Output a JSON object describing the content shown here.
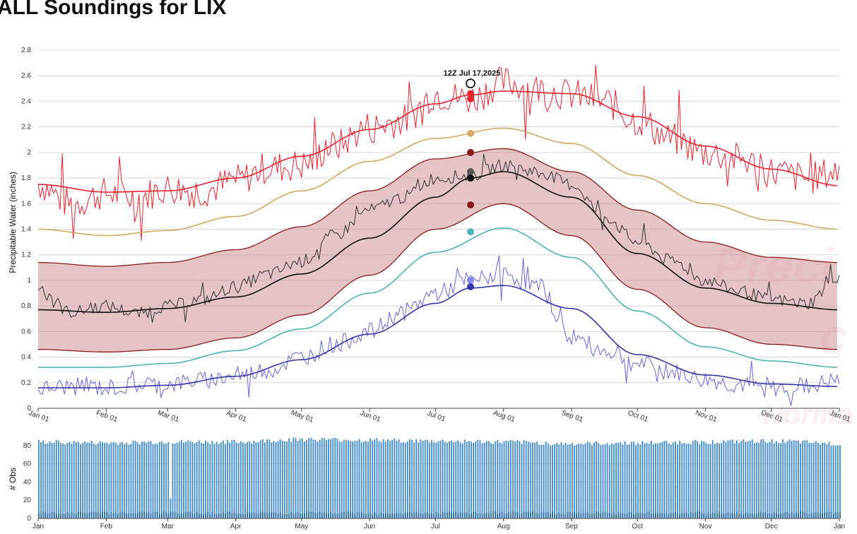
{
  "title": "ALL Soundings for LIX",
  "annotation": "12Z Jul 17,2025",
  "chart_data": [
    {
      "type": "line",
      "ylabel": "Precipitable Water (inches)",
      "xlabel": "",
      "ylim": [
        0,
        2.8
      ],
      "yticks": [
        0,
        0.2,
        0.4,
        0.6,
        0.8,
        1,
        1.2,
        1.4,
        1.6,
        1.8,
        2,
        2.2,
        2.4,
        2.6,
        2.8
      ],
      "ytick_labels": [
        "0",
        "0.2",
        "0.4",
        "0.6",
        "0.8",
        "1",
        "1.2",
        "1.4",
        "1.6",
        "1.8",
        "2",
        "2.2",
        "2.4",
        "2.6",
        "2.8"
      ],
      "x_tick_labels": [
        "Jan 01",
        "Feb 01",
        "Mar 01",
        "Apr 01",
        "May 01",
        "Jun 01",
        "Jul 01",
        "Aug 01",
        "Sep 01",
        "Oct 01",
        "Nov 01",
        "Dec 01",
        "Jan 01"
      ],
      "x_tick_days": [
        0,
        31,
        59,
        90,
        120,
        151,
        181,
        212,
        243,
        273,
        304,
        334,
        365
      ],
      "grid": "horizontal",
      "band_75_25": {
        "days": [
          0,
          31,
          59,
          90,
          120,
          151,
          181,
          212,
          243,
          273,
          304,
          334,
          365
        ],
        "upper": [
          1.14,
          1.11,
          1.14,
          1.24,
          1.42,
          1.7,
          1.95,
          2.03,
          1.85,
          1.55,
          1.3,
          1.18,
          1.14
        ],
        "lower": [
          0.46,
          0.44,
          0.46,
          0.55,
          0.73,
          1.04,
          1.4,
          1.6,
          1.35,
          0.93,
          0.63,
          0.5,
          0.46
        ]
      },
      "series": [
        {
          "color": "#e8222e",
          "kind": "max-observed",
          "days": [
            0,
            15,
            31,
            45,
            59,
            75,
            90,
            105,
            120,
            135,
            151,
            166,
            181,
            197,
            212,
            228,
            243,
            258,
            273,
            289,
            304,
            319,
            334,
            350,
            365
          ],
          "values": [
            1.75,
            1.6,
            1.68,
            1.65,
            1.72,
            1.7,
            1.78,
            1.88,
            1.9,
            2.05,
            2.2,
            2.25,
            2.45,
            2.42,
            2.55,
            2.5,
            2.45,
            2.4,
            2.25,
            2.1,
            2.0,
            1.95,
            1.85,
            1.8,
            1.85
          ]
        },
        {
          "color": "#e8222e",
          "kind": "max-smoothed",
          "days": [
            0,
            31,
            59,
            90,
            120,
            151,
            181,
            197,
            212,
            243,
            273,
            304,
            334,
            365
          ],
          "values": [
            1.75,
            1.69,
            1.7,
            1.8,
            1.97,
            2.18,
            2.38,
            2.45,
            2.48,
            2.46,
            2.28,
            2.05,
            1.87,
            1.74
          ]
        },
        {
          "color": "#d4a860",
          "kind": "percentile-upper",
          "days": [
            0,
            31,
            59,
            90,
            120,
            151,
            181,
            212,
            243,
            273,
            304,
            334,
            365
          ],
          "values": [
            1.4,
            1.35,
            1.39,
            1.5,
            1.7,
            1.93,
            2.11,
            2.19,
            2.07,
            1.82,
            1.6,
            1.47,
            1.4
          ]
        },
        {
          "color": "#333333",
          "kind": "daily-observed",
          "days": [
            0,
            15,
            31,
            45,
            59,
            75,
            90,
            105,
            120,
            135,
            151,
            166,
            181,
            197,
            212,
            228,
            243,
            258,
            273,
            289,
            304,
            319,
            334,
            350,
            365
          ],
          "values": [
            0.95,
            0.75,
            0.8,
            0.74,
            0.8,
            0.85,
            0.95,
            1.05,
            1.15,
            1.35,
            1.55,
            1.65,
            1.8,
            1.82,
            1.9,
            1.85,
            1.75,
            1.5,
            1.3,
            1.15,
            1.0,
            0.92,
            0.85,
            0.82,
            1.03
          ]
        },
        {
          "color": "#111111",
          "kind": "mean",
          "days": [
            0,
            31,
            59,
            90,
            120,
            151,
            181,
            197,
            212,
            243,
            273,
            304,
            334,
            365
          ],
          "values": [
            0.77,
            0.75,
            0.78,
            0.87,
            1.05,
            1.33,
            1.65,
            1.8,
            1.85,
            1.65,
            1.21,
            0.94,
            0.82,
            0.77
          ]
        },
        {
          "color": "#4fb4b4",
          "kind": "percentile-lower",
          "days": [
            0,
            31,
            59,
            90,
            120,
            151,
            181,
            212,
            243,
            273,
            304,
            334,
            365
          ],
          "values": [
            0.32,
            0.32,
            0.35,
            0.45,
            0.62,
            0.9,
            1.22,
            1.41,
            1.18,
            0.76,
            0.48,
            0.37,
            0.32
          ]
        },
        {
          "color": "#6666dd",
          "kind": "min-observed",
          "days": [
            0,
            15,
            31,
            45,
            59,
            75,
            90,
            105,
            120,
            135,
            151,
            166,
            181,
            197,
            212,
            228,
            243,
            258,
            273,
            289,
            304,
            319,
            334,
            350,
            365
          ],
          "values": [
            0.15,
            0.17,
            0.16,
            0.18,
            0.19,
            0.22,
            0.25,
            0.3,
            0.4,
            0.5,
            0.6,
            0.75,
            0.9,
            1.0,
            1.05,
            0.95,
            0.55,
            0.45,
            0.35,
            0.28,
            0.22,
            0.18,
            0.15,
            0.17,
            0.22
          ]
        },
        {
          "color": "#3535a8",
          "kind": "min-smoothed",
          "days": [
            0,
            31,
            59,
            90,
            120,
            151,
            181,
            197,
            212,
            243,
            273,
            304,
            334,
            365
          ],
          "values": [
            0.16,
            0.16,
            0.18,
            0.25,
            0.38,
            0.58,
            0.82,
            0.94,
            0.96,
            0.78,
            0.42,
            0.26,
            0.19,
            0.17
          ]
        }
      ],
      "markers": {
        "day": 197,
        "points": [
          {
            "value": 2.54,
            "color": "#000000",
            "hollow": true
          },
          {
            "value": 2.46,
            "color": "#e8222e"
          },
          {
            "value": 2.42,
            "color": "#e8222e"
          },
          {
            "value": 2.15,
            "color": "#d4a860"
          },
          {
            "value": 2.0,
            "color": "#8b1c1c"
          },
          {
            "value": 1.85,
            "color": "#555555"
          },
          {
            "value": 1.8,
            "color": "#111111"
          },
          {
            "value": 1.59,
            "color": "#8b1c1c"
          },
          {
            "value": 1.38,
            "color": "#4fb4b4"
          },
          {
            "value": 1.0,
            "color": "#8888ee"
          },
          {
            "value": 0.95,
            "color": "#3535a8"
          }
        ]
      }
    },
    {
      "type": "bar",
      "ylabel": "# Obs",
      "ylim": [
        0,
        90
      ],
      "yticks": [
        0,
        20,
        40,
        60,
        80
      ],
      "ytick_labels": [
        "0",
        "20",
        "40",
        "60",
        "80"
      ],
      "x_tick_labels": [
        "Jan",
        "Feb",
        "Mar",
        "Apr",
        "May",
        "Jun",
        "Jul",
        "Aug",
        "Sep",
        "Oct",
        "Nov",
        "Dec",
        "Jan"
      ],
      "x_tick_days": [
        0,
        31,
        59,
        90,
        120,
        151,
        181,
        212,
        243,
        273,
        304,
        334,
        365
      ],
      "color": "#4a90c8",
      "base_color": "#2e6fa8",
      "days": [
        0,
        31,
        59,
        60,
        61,
        90,
        120,
        151,
        181,
        212,
        243,
        273,
        304,
        334,
        365
      ],
      "values": [
        84,
        83,
        84,
        22,
        84,
        84,
        87,
        86,
        85,
        84,
        82,
        83,
        84,
        85,
        82
      ],
      "base_values": [
        6,
        6,
        6,
        6,
        6,
        6,
        6,
        6,
        6,
        6,
        6,
        6,
        6,
        6,
        6
      ]
    }
  ]
}
